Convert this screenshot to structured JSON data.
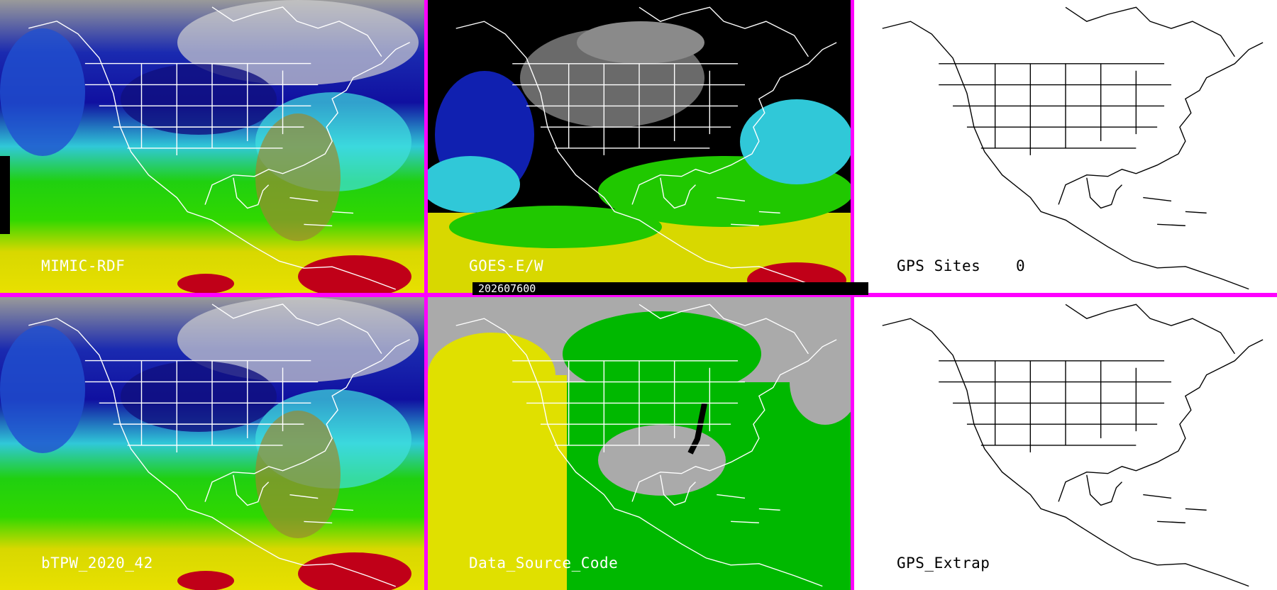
{
  "timestamp": "202607600",
  "panels": {
    "mimic": {
      "label": "MIMIC-RDF"
    },
    "goes": {
      "label": "GOES-E/W"
    },
    "gps_sites": {
      "label": "GPS Sites",
      "count": "0"
    },
    "btpw": {
      "label": "bTPW_2020_42"
    },
    "source": {
      "label": "Data_Source_Code"
    },
    "gps_extrap": {
      "label": "GPS_Extrap"
    }
  },
  "colors": {
    "divider": "#ff00ff",
    "tpw_dry": "#0a1aa0",
    "tpw_low": "#3cdcdc",
    "tpw_mid": "#28d000",
    "tpw_high": "#e8e000",
    "tpw_max": "#c00018",
    "source_gray": "#aaaaaa",
    "source_yellow": "#e0e000",
    "source_green": "#00b800"
  }
}
